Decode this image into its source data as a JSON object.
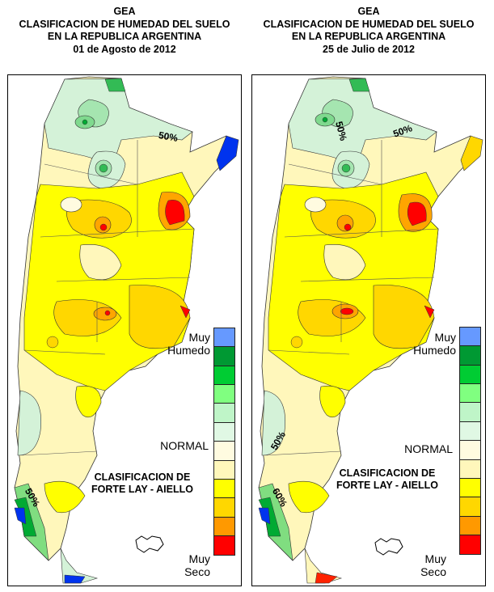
{
  "panels": [
    {
      "org": "GEA",
      "heading": "CLASIFICACION DE HUMEDAD DEL SUELO",
      "region": "EN LA REPUBLICA ARGENTINA",
      "date": "01 de Agosto de 2012",
      "contour_labels": [
        "50%",
        "50%"
      ]
    },
    {
      "org": "GEA",
      "heading": "CLASIFICACION DE HUMEDAD DEL SUELO",
      "region": "EN LA REPUBLICA ARGENTINA",
      "date": "25 de Julio de 2012",
      "contour_labels": [
        "50%",
        "50%",
        "50%",
        "60%"
      ]
    }
  ],
  "legend": {
    "top_label_line1": "Muy",
    "top_label_line2": "Humedo",
    "middle_label": "NORMAL",
    "bottom_label_line1": "Muy",
    "bottom_label_line2": "Seco",
    "classification_line1": "CLASIFICACION DE",
    "classification_line2": "FORTE LAY - AIELLO",
    "colors": [
      "#6699ff",
      "#009933",
      "#00cc33",
      "#80ff80",
      "#bff5c8",
      "#e0f8e4",
      "#fffbe0",
      "#fff7bb",
      "#ffff00",
      "#ffd700",
      "#ff9900",
      "#ff0000"
    ]
  }
}
